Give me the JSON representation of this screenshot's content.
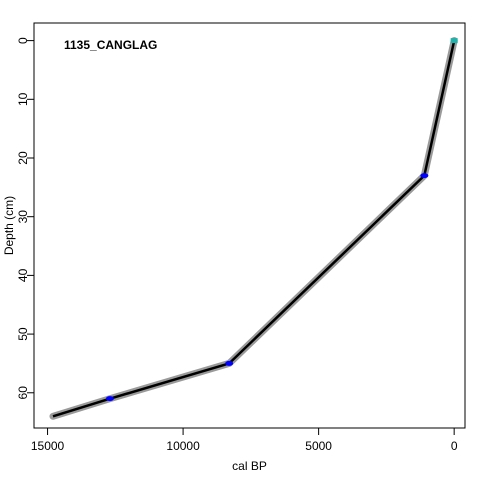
{
  "chart_data": {
    "type": "line",
    "title": "",
    "annotation": "1135_CANGLAG",
    "xlabel": "cal BP",
    "ylabel": "Depth (cm)",
    "xlim": [
      15500,
      -400
    ],
    "ylim": [
      -3,
      66
    ],
    "x_reversed": true,
    "y_reversed": true,
    "x_ticks": [
      15000,
      10000,
      5000,
      0
    ],
    "y_ticks": [
      0,
      10,
      20,
      30,
      40,
      50,
      60
    ],
    "age_depth_model": {
      "x": [
        0,
        1100,
        8300,
        12700,
        14800
      ],
      "y": [
        0,
        23,
        55,
        61,
        64
      ]
    },
    "dated_samples": [
      {
        "age": 0,
        "depth": 0,
        "color": "#20b2aa",
        "kind": "surface"
      },
      {
        "age": 1100,
        "depth": 23,
        "color": "#0000ff",
        "kind": "date"
      },
      {
        "age": 8300,
        "depth": 55,
        "color": "#0000ff",
        "kind": "date"
      },
      {
        "age": 12700,
        "depth": 61,
        "color": "#0000ff",
        "kind": "date"
      }
    ],
    "colors": {
      "model_line": "#000000",
      "uncertainty_band": "#9a9a9a",
      "date_point": "#0000ff",
      "surface_point": "#20b2aa"
    },
    "grid": false,
    "legend": "none"
  }
}
